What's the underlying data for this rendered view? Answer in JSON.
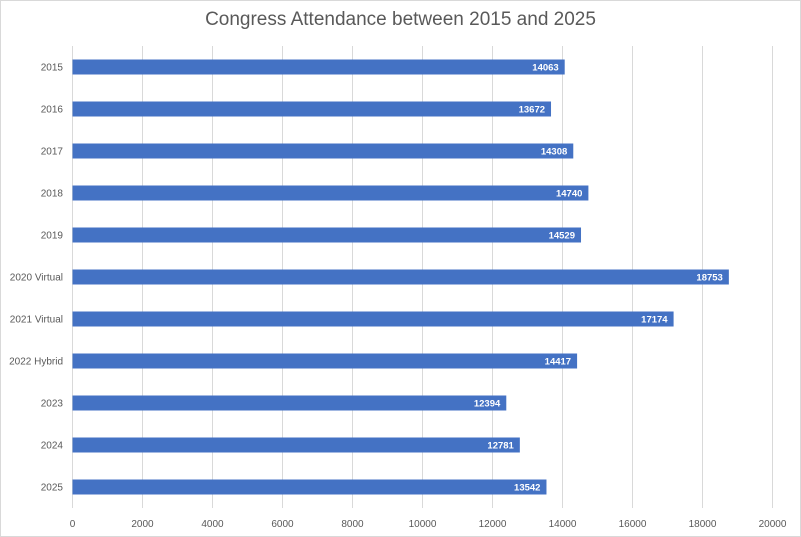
{
  "chart_data": {
    "type": "bar",
    "orientation": "horizontal",
    "title": "Congress Attendance between 2015 and 2025",
    "xlabel": "",
    "ylabel": "",
    "categories": [
      "2015",
      "2016",
      "2017",
      "2018",
      "2019",
      "2020 Virtual",
      "2021 Virtual",
      "2022 Hybrid",
      "2023",
      "2024",
      "2025"
    ],
    "values": [
      14063,
      13672,
      14308,
      14740,
      14529,
      18753,
      17174,
      14417,
      12394,
      12781,
      13542
    ],
    "xlim": [
      0,
      20000
    ],
    "xticks": [
      0,
      2000,
      4000,
      6000,
      8000,
      10000,
      12000,
      14000,
      16000,
      18000,
      20000
    ],
    "grid": "vertical",
    "legend": "none",
    "bar_color": "#4472c4",
    "data_labels": "inside-end"
  }
}
